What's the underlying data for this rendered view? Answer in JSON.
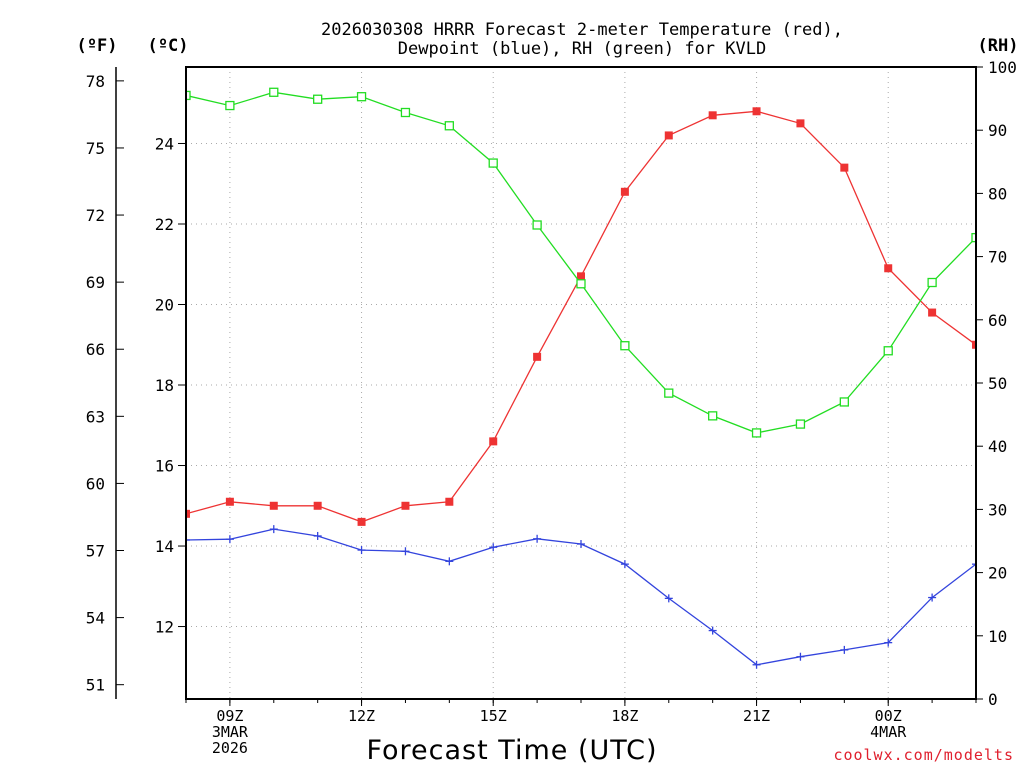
{
  "chart_data": {
    "type": "line",
    "title_line1": "2026030308 HRRR Forecast 2-meter Temperature (red),",
    "title_line2": "Dewpoint (blue), RH (green) for KVLD",
    "xlabel": "Forecast Time (UTC)",
    "credit": "coolwx.com/modelts",
    "unit_f": "(ºF)",
    "unit_c": "(ºC)",
    "unit_rh": "(RH)",
    "x_hours": [
      8,
      9,
      10,
      11,
      12,
      13,
      14,
      15,
      16,
      17,
      18,
      19,
      20,
      21,
      22,
      23,
      24,
      25,
      26
    ],
    "x_ticks": [
      {
        "hour": 9,
        "lines": [
          "09Z",
          "3MAR",
          "2026"
        ]
      },
      {
        "hour": 12,
        "lines": [
          "12Z"
        ]
      },
      {
        "hour": 15,
        "lines": [
          "15Z"
        ]
      },
      {
        "hour": 18,
        "lines": [
          "18Z"
        ]
      },
      {
        "hour": 21,
        "lines": [
          "21Z"
        ]
      },
      {
        "hour": 24,
        "lines": [
          "00Z",
          "4MAR"
        ]
      }
    ],
    "xlim": [
      8,
      26
    ],
    "ylim_c": [
      10.2,
      25.9
    ],
    "ylim_rh": [
      0,
      100
    ],
    "y_ticks_c": [
      "12",
      "14",
      "16",
      "18",
      "20",
      "22",
      "24"
    ],
    "y_ticks_f": [
      "51",
      "54",
      "57",
      "60",
      "63",
      "66",
      "69",
      "72",
      "75",
      "78"
    ],
    "y_ticks_rh": [
      "0",
      "10",
      "20",
      "30",
      "40",
      "50",
      "60",
      "70",
      "80",
      "90",
      "100"
    ],
    "series": [
      {
        "name": "Temperature",
        "unit": "C",
        "color": "#ee3333",
        "marker": "filled-square",
        "values": [
          14.8,
          15.1,
          15.0,
          15.0,
          14.6,
          15.0,
          15.1,
          16.6,
          18.7,
          20.7,
          22.8,
          24.2,
          24.7,
          24.8,
          24.5,
          23.4,
          20.9,
          19.8,
          19.0
        ]
      },
      {
        "name": "Dewpoint",
        "unit": "C",
        "color": "#3344dd",
        "marker": "plus",
        "values": [
          14.15,
          14.17,
          14.42,
          14.25,
          13.9,
          13.87,
          13.62,
          13.97,
          14.18,
          14.05,
          13.55,
          12.7,
          11.9,
          11.05,
          11.25,
          11.42,
          11.6,
          12.72,
          13.55
        ]
      },
      {
        "name": "RH",
        "unit": "%",
        "color": "#22dd22",
        "marker": "open-square",
        "values": [
          95.5,
          93.9,
          96.0,
          94.9,
          95.3,
          92.8,
          90.7,
          84.8,
          75.0,
          65.7,
          55.9,
          48.4,
          44.8,
          42.1,
          43.5,
          47.0,
          55.1,
          65.9,
          73.0
        ]
      }
    ]
  }
}
